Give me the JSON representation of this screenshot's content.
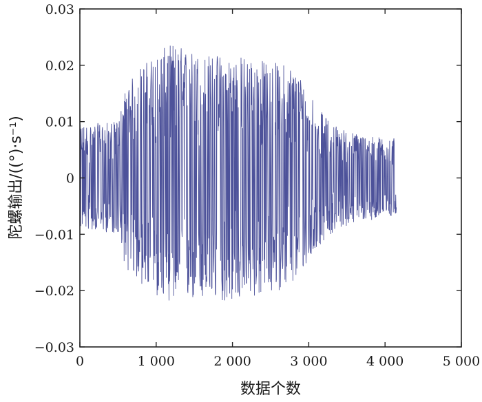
{
  "chart_data": {
    "type": "line",
    "title": "",
    "xlabel": "数据个数",
    "ylabel": "陀螺输出/((°)·s⁻¹)",
    "xlim": [
      0,
      5000
    ],
    "ylim": [
      -0.03,
      0.03
    ],
    "grid": false,
    "line_color": "#3a3f8f",
    "x_ticks": [
      {
        "value": 0,
        "label": "0"
      },
      {
        "value": 1000,
        "label": "1 000"
      },
      {
        "value": 2000,
        "label": "2 000"
      },
      {
        "value": 3000,
        "label": "3 000"
      },
      {
        "value": 4000,
        "label": "4 000"
      },
      {
        "value": 5000,
        "label": "5 000"
      }
    ],
    "y_ticks": [
      {
        "value": 0.03,
        "label": "0.03"
      },
      {
        "value": 0.02,
        "label": "0.02"
      },
      {
        "value": 0.01,
        "label": "0.01"
      },
      {
        "value": 0,
        "label": "0"
      },
      {
        "value": -0.01,
        "label": "−0.01"
      },
      {
        "value": -0.02,
        "label": "−0.02"
      },
      {
        "value": -0.03,
        "label": "−0.03"
      }
    ],
    "series": [
      {
        "x_range": [
          0,
          4150
        ],
        "envelope_x": [
          0,
          500,
          600,
          800,
          1000,
          1200,
          1600,
          2000,
          2400,
          2800,
          3000,
          3200,
          3400,
          3600,
          3800,
          4150
        ],
        "envelope_upper": [
          0.0095,
          0.01,
          0.016,
          0.02,
          0.022,
          0.024,
          0.022,
          0.022,
          0.021,
          0.02,
          0.016,
          0.011,
          0.009,
          0.008,
          0.0075,
          0.007
        ],
        "envelope_lower": [
          -0.009,
          -0.01,
          -0.016,
          -0.019,
          -0.021,
          -0.022,
          -0.022,
          -0.022,
          -0.021,
          -0.019,
          -0.015,
          -0.011,
          -0.009,
          -0.008,
          -0.0075,
          -0.007
        ]
      }
    ]
  }
}
